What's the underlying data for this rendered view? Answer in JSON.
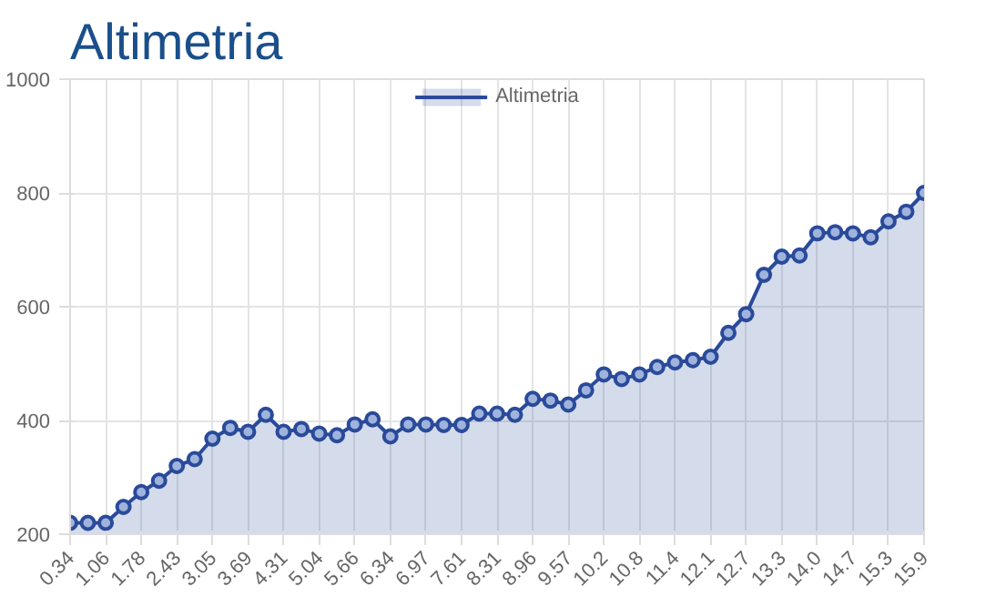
{
  "chart_data": {
    "type": "area",
    "title": "Altimetria",
    "categories": [
      "0.34",
      null,
      "1.06",
      null,
      "1.78",
      null,
      "2.43",
      null,
      "3.05",
      null,
      "3.69",
      null,
      "4.31",
      null,
      "5.04",
      null,
      "5.66",
      null,
      "6.34",
      null,
      "6.97",
      null,
      "7.61",
      null,
      "8.31",
      null,
      "8.96",
      null,
      "9.57",
      null,
      "10.2",
      null,
      "10.8",
      null,
      "11.4",
      null,
      "12.1",
      null,
      "12.7",
      null,
      "13.3",
      null,
      "14.0",
      null,
      "14.7",
      null,
      "15.3",
      null,
      "15.9"
    ],
    "series": [
      {
        "name": "Altimetria",
        "color": "#2a4a9a",
        "values": [
          220,
          220,
          220,
          248,
          274,
          294,
          320,
          332,
          368,
          387,
          380,
          410,
          380,
          385,
          377,
          374,
          393,
          402,
          372,
          393,
          393,
          392,
          392,
          412,
          412,
          410,
          438,
          435,
          428,
          453,
          481,
          473,
          481,
          494,
          502,
          506,
          512,
          554,
          587,
          656,
          688,
          690,
          729,
          731,
          729,
          722,
          750,
          767,
          800
        ]
      }
    ],
    "ylim": [
      200,
      1000
    ],
    "yticks": [
      200,
      400,
      600,
      800,
      1000
    ],
    "grid": true,
    "legend": "top",
    "marker": "circle",
    "line_style": "solid"
  }
}
